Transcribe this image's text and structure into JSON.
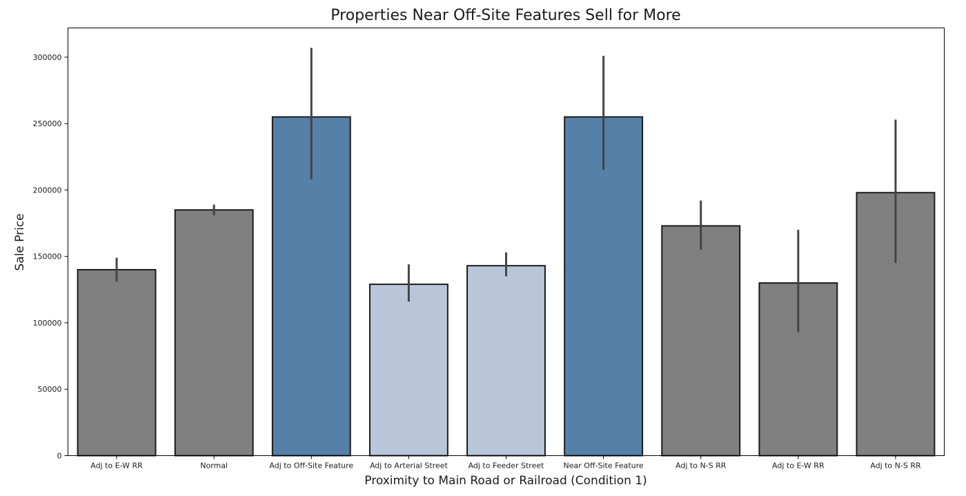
{
  "chart_data": {
    "type": "bar",
    "title": "Properties Near Off-Site Features Sell for More",
    "xlabel": "Proximity to Main Road or Railroad (Condition 1)",
    "ylabel": "Sale Price",
    "ylim": [
      0,
      322000
    ],
    "yticks": [
      0,
      50000,
      100000,
      150000,
      200000,
      250000,
      300000
    ],
    "grid": false,
    "categories": [
      "Adj to E-W RR",
      "Normal",
      "Adj to Off-Site Feature",
      "Adj to Arterial Street",
      "Adj to Feeder Street",
      "Near Off-Site Feature",
      "Adj to N-S RR",
      "Adj to E-W RR",
      "Adj to N-S RR"
    ],
    "values": [
      140000,
      185000,
      255000,
      129000,
      143000,
      255000,
      173000,
      130000,
      198000
    ],
    "error_low": [
      131000,
      181000,
      208000,
      116000,
      135000,
      215000,
      155000,
      93000,
      145000
    ],
    "error_high": [
      149000,
      189000,
      307000,
      144000,
      153000,
      301000,
      192000,
      170000,
      253000
    ],
    "colors": [
      "#808080",
      "#808080",
      "#5580a8",
      "#b9c6d9",
      "#b9c6d9",
      "#5580a8",
      "#808080",
      "#808080",
      "#808080"
    ]
  }
}
